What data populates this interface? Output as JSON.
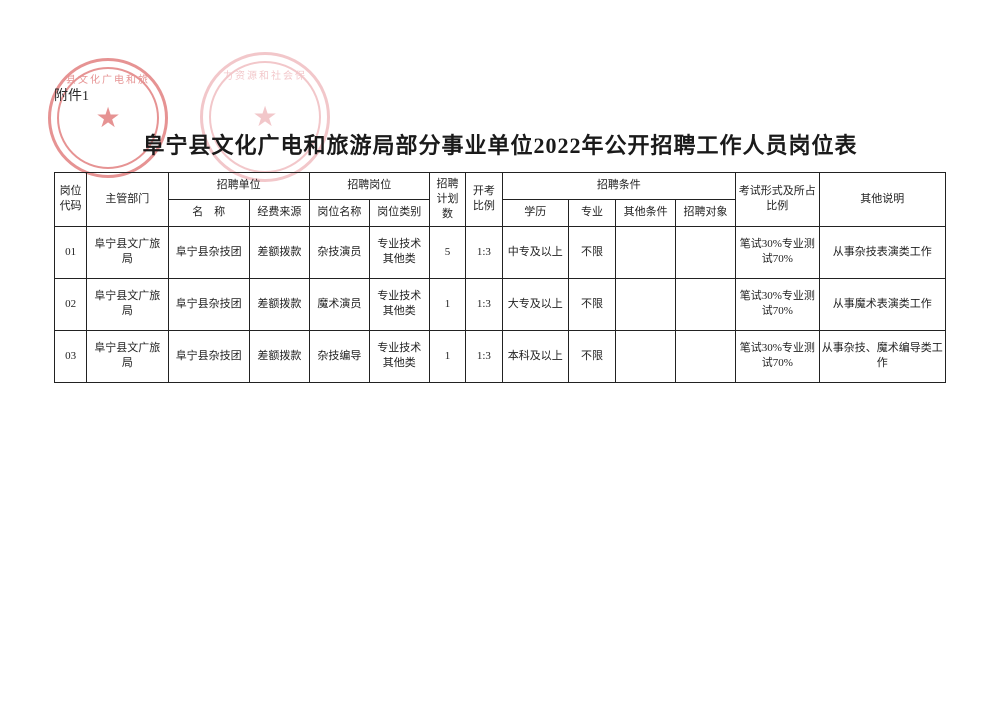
{
  "attachment_label": "附件1",
  "title": "阜宁县文化广电和旅游局部分事业单位2022年公开招聘工作人员岗位表",
  "stamps": {
    "red": {
      "color": "#d23b3b",
      "arc_text": "县文化广电和旅",
      "star": "★"
    },
    "pink": {
      "color": "#e99aa0",
      "arc_text": "力资源和社会保",
      "star": "★"
    }
  },
  "table": {
    "headers": {
      "code": "岗位代码",
      "dept": "主管部门",
      "unit_group": "招聘单位",
      "unit_name": "名　称",
      "unit_fund": "经费来源",
      "post_group": "招聘岗位",
      "post_name": "岗位名称",
      "post_type": "岗位类别",
      "plan": "招聘计划数",
      "ratio": "开考比例",
      "cond_group": "招聘条件",
      "cond_edu": "学历",
      "cond_major": "专业",
      "cond_other": "其他条件",
      "cond_target": "招聘对象",
      "exam": "考试形式及所占比例",
      "note": "其他说明"
    },
    "rows": [
      {
        "code": "01",
        "dept": "阜宁县文广旅局",
        "unit_name": "阜宁县杂技团",
        "unit_fund": "差额拨款",
        "post_name": "杂技演员",
        "post_type": "专业技术其他类",
        "plan": "5",
        "ratio": "1:3",
        "edu": "中专及以上",
        "major": "不限",
        "other": "",
        "target": "",
        "exam": "笔试30%专业测试70%",
        "note": "从事杂技表演类工作"
      },
      {
        "code": "02",
        "dept": "阜宁县文广旅局",
        "unit_name": "阜宁县杂技团",
        "unit_fund": "差额拨款",
        "post_name": "魔术演员",
        "post_type": "专业技术其他类",
        "plan": "1",
        "ratio": "1:3",
        "edu": "大专及以上",
        "major": "不限",
        "other": "",
        "target": "",
        "exam": "笔试30%专业测试70%",
        "note": "从事魔术表演类工作"
      },
      {
        "code": "03",
        "dept": "阜宁县文广旅局",
        "unit_name": "阜宁县杂技团",
        "unit_fund": "差额拨款",
        "post_name": "杂技编导",
        "post_type": "专业技术其他类",
        "plan": "1",
        "ratio": "1:3",
        "edu": "本科及以上",
        "major": "不限",
        "other": "",
        "target": "",
        "exam": "笔试30%专业测试70%",
        "note": "从事杂技、魔术编导类工作"
      }
    ]
  }
}
